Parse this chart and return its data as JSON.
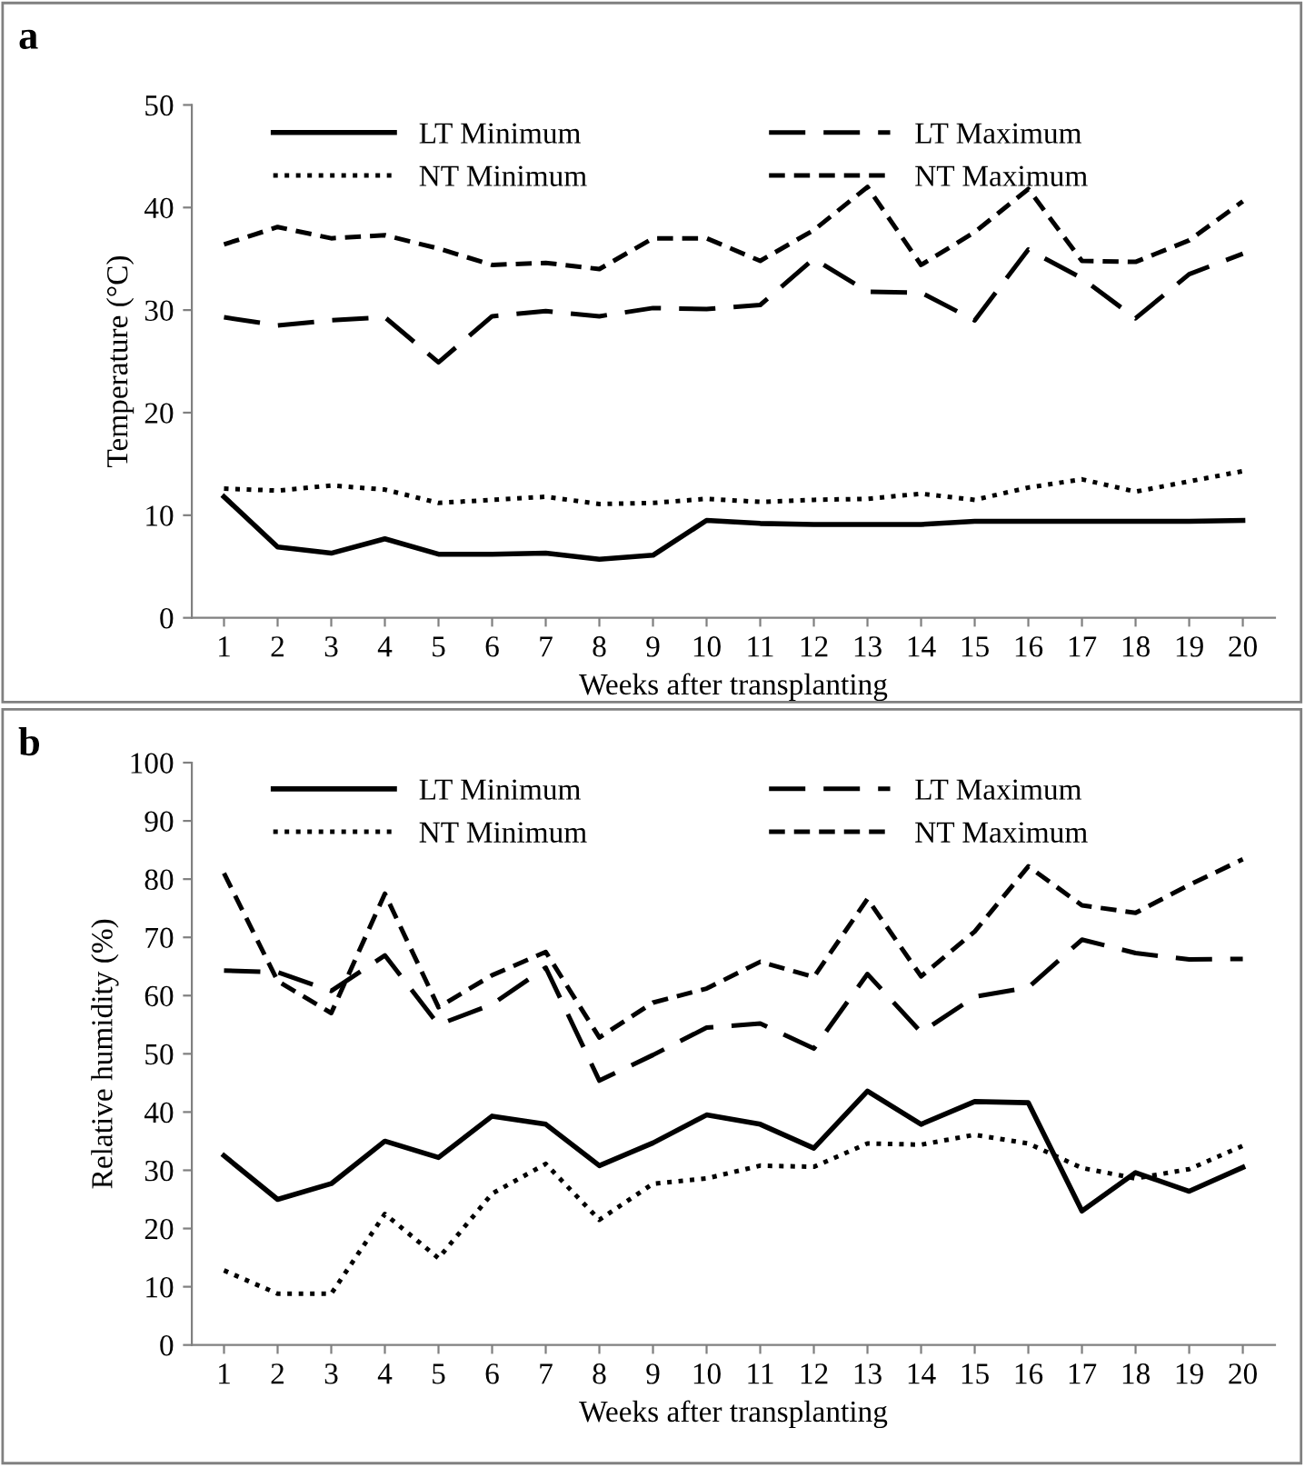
{
  "chart_data": [
    {
      "type": "line",
      "title": "a",
      "xlabel": "Weeks after transplanting",
      "ylabel": "Temperature (°C)",
      "categories": [
        "1",
        "2",
        "3",
        "4",
        "5",
        "6",
        "7",
        "8",
        "9",
        "10",
        "11",
        "12",
        "13",
        "14",
        "15",
        "16",
        "17",
        "18",
        "19",
        "20"
      ],
      "ylim": [
        0,
        50
      ],
      "yticks": [
        0,
        10,
        20,
        30,
        40,
        50
      ],
      "grid": false,
      "legend": "top left",
      "series": [
        {
          "name": "LT Minimum",
          "color": "#000000",
          "line_style": "solid",
          "values": [
            11.8,
            6.9,
            6.3,
            7.7,
            6.2,
            6.2,
            6.3,
            5.7,
            6.1,
            9.5,
            9.2,
            9.1,
            9.1,
            9.1,
            9.4,
            9.4,
            9.4,
            9.4,
            9.4,
            9.5
          ]
        },
        {
          "name": "LT Maximum",
          "color": "#000000",
          "line_style": "dashed",
          "values": [
            29.3,
            28.5,
            29,
            29.3,
            24.9,
            29.4,
            29.9,
            29.4,
            30.2,
            30.1,
            30.5,
            35,
            31.8,
            31.7,
            29,
            35.9,
            33.1,
            29.2,
            33.5,
            35.5
          ]
        },
        {
          "name": "NT Minimum",
          "color": "#000000",
          "line_style": "dotted",
          "values": [
            12.6,
            12.4,
            12.9,
            12.5,
            11.2,
            11.5,
            11.8,
            11.1,
            11.2,
            11.6,
            11.3,
            11.5,
            11.6,
            12.1,
            11.5,
            12.7,
            13.5,
            12.3,
            13.3,
            14.3
          ]
        },
        {
          "name": "NT Maximum",
          "color": "#000000",
          "line_style": "dashed",
          "values": [
            36.4,
            38.1,
            37,
            37.3,
            36,
            34.4,
            34.6,
            34,
            37,
            37,
            34.8,
            37.8,
            42,
            34.4,
            37.6,
            41.8,
            34.8,
            34.7,
            36.8,
            40.6
          ]
        }
      ]
    },
    {
      "type": "line",
      "title": "b",
      "xlabel": "Weeks after transplanting",
      "ylabel": "Relative humidity (%)",
      "categories": [
        "1",
        "2",
        "3",
        "4",
        "5",
        "6",
        "7",
        "8",
        "9",
        "10",
        "11",
        "12",
        "13",
        "14",
        "15",
        "16",
        "17",
        "18",
        "19",
        "20"
      ],
      "ylim": [
        0,
        100
      ],
      "yticks": [
        0,
        10,
        20,
        30,
        40,
        50,
        60,
        70,
        80,
        90,
        100
      ],
      "grid": false,
      "legend": "top left",
      "series": [
        {
          "name": "LT Minimum",
          "color": "#000000",
          "line_style": "solid",
          "values": [
            32.5,
            25,
            27.7,
            35,
            32.2,
            39.3,
            37.9,
            30.8,
            34.7,
            39.5,
            37.9,
            33.8,
            43.6,
            37.9,
            41.8,
            41.6,
            23,
            29.6,
            26.4,
            30.5
          ]
        },
        {
          "name": "LT Maximum",
          "color": "#000000",
          "line_style": "dashed",
          "values": [
            64.3,
            64,
            60.8,
            66.9,
            55,
            58.5,
            64.8,
            45.4,
            49.8,
            54.5,
            55.2,
            50.9,
            63.7,
            53.7,
            59.8,
            61.4,
            69.6,
            67.3,
            66.2,
            66.3
          ]
        },
        {
          "name": "NT Minimum",
          "color": "#000000",
          "line_style": "dotted",
          "values": [
            12.8,
            8.8,
            8.8,
            22.5,
            14.9,
            26,
            31.1,
            21.5,
            27.7,
            28.6,
            30.8,
            30.6,
            34.6,
            34.4,
            36.1,
            34.6,
            30.4,
            28.6,
            30.2,
            34.2
          ]
        },
        {
          "name": "NT Maximum",
          "color": "#000000",
          "line_style": "dashed",
          "values": [
            81,
            62.5,
            57,
            77.5,
            58,
            63.5,
            67.5,
            52.8,
            58.8,
            61.2,
            65.8,
            63.2,
            76.6,
            63.3,
            71,
            82.2,
            75.5,
            74.2,
            79,
            83.4
          ]
        }
      ]
    }
  ]
}
